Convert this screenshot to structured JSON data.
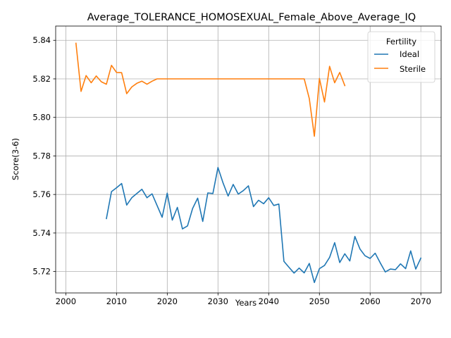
{
  "chart_data": {
    "type": "line",
    "title": "Average_TOLERANCE_HOMOSEXUAL_Female_Above_Average_IQ",
    "xlabel": "Years",
    "ylabel": "Score(3-6)",
    "xlim": [
      1998,
      2074
    ],
    "ylim": [
      5.7089,
      5.8474
    ],
    "xticks": [
      2000,
      2010,
      2020,
      2030,
      2040,
      2050,
      2060,
      2070
    ],
    "xtick_labels": [
      "2000",
      "2010",
      "2020",
      "2030",
      "2040",
      "2050",
      "2060",
      "2070"
    ],
    "yticks": [
      5.72,
      5.74,
      5.76,
      5.78,
      5.8,
      5.82,
      5.84
    ],
    "ytick_labels": [
      "5.72",
      "5.74",
      "5.76",
      "5.78",
      "5.80",
      "5.82",
      "5.84"
    ],
    "grid": true,
    "legend": {
      "title": "Fertility",
      "position": "top-right"
    },
    "series": [
      {
        "name": "Ideal",
        "color": "#1f77b4",
        "x": [
          2008,
          2009,
          2010,
          2011,
          2012,
          2013,
          2014,
          2015,
          2016,
          2017,
          2018,
          2019,
          2020,
          2021,
          2022,
          2023,
          2024,
          2025,
          2026,
          2027,
          2028,
          2029,
          2030,
          2031,
          2032,
          2033,
          2034,
          2035,
          2036,
          2037,
          2038,
          2039,
          2040,
          2041,
          2042,
          2043,
          2044,
          2045,
          2046,
          2047,
          2048,
          2049,
          2050,
          2051,
          2052,
          2053,
          2054,
          2055,
          2056,
          2057,
          2058,
          2059,
          2060,
          2061,
          2062,
          2063,
          2064,
          2065,
          2066,
          2067,
          2068,
          2069,
          2070
        ],
        "values": [
          5.7475,
          5.7615,
          5.7635,
          5.7657,
          5.7545,
          5.7583,
          5.7605,
          5.7627,
          5.7583,
          5.7603,
          5.7543,
          5.7482,
          5.7607,
          5.7467,
          5.7533,
          5.7421,
          5.7437,
          5.7527,
          5.7581,
          5.746,
          5.7608,
          5.7605,
          5.774,
          5.766,
          5.7592,
          5.7652,
          5.7602,
          5.762,
          5.7645,
          5.7537,
          5.757,
          5.7552,
          5.7583,
          5.7543,
          5.755,
          5.7253,
          5.7222,
          5.7192,
          5.7218,
          5.7193,
          5.7242,
          5.7143,
          5.7215,
          5.7232,
          5.7273,
          5.735,
          5.7247,
          5.7292,
          5.7255,
          5.7382,
          5.7317,
          5.7282,
          5.7268,
          5.7295,
          5.7245,
          5.7198,
          5.7213,
          5.721,
          5.724,
          5.7215,
          5.7307,
          5.7213,
          5.727
        ]
      },
      {
        "name": "Sterile",
        "color": "#ff7f0e",
        "x": [
          2002,
          2003,
          2004,
          2005,
          2006,
          2007,
          2008,
          2009,
          2010,
          2011,
          2012,
          2013,
          2014,
          2015,
          2016,
          2017,
          2018,
          2019,
          2020,
          2021,
          2022,
          2023,
          2024,
          2025,
          2026,
          2027,
          2028,
          2029,
          2030,
          2031,
          2032,
          2033,
          2034,
          2035,
          2036,
          2037,
          2038,
          2039,
          2040,
          2041,
          2042,
          2043,
          2044,
          2045,
          2046,
          2047,
          2048,
          2049,
          2050,
          2051,
          2052,
          2053,
          2054,
          2055
        ],
        "values": [
          5.8385,
          5.8135,
          5.8217,
          5.818,
          5.8215,
          5.8185,
          5.8172,
          5.827,
          5.8233,
          5.8232,
          5.8123,
          5.8158,
          5.8177,
          5.8188,
          5.8172,
          5.8188,
          5.82,
          5.82,
          5.82,
          5.82,
          5.82,
          5.82,
          5.82,
          5.82,
          5.82,
          5.82,
          5.82,
          5.82,
          5.82,
          5.82,
          5.82,
          5.82,
          5.82,
          5.82,
          5.82,
          5.82,
          5.82,
          5.82,
          5.82,
          5.82,
          5.82,
          5.82,
          5.82,
          5.82,
          5.82,
          5.82,
          5.8098,
          5.7902,
          5.8202,
          5.808,
          5.8265,
          5.818,
          5.8233,
          5.8165
        ]
      }
    ]
  }
}
